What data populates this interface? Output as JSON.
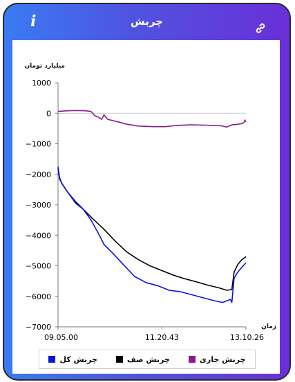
{
  "header": {
    "title": "چربش",
    "info_icon": "info-icon",
    "link_icon": "link-icon"
  },
  "colors": {
    "header_left": "#3a7bf2",
    "header_right": "#6a2fd8",
    "total": "#0a14e0",
    "queue": "#000000",
    "current": "#8a1a8a"
  },
  "chart_data": {
    "type": "line",
    "ylabel": "میلیارد تومان",
    "xlabel": "زمان",
    "ylim": [
      -7000,
      1000
    ],
    "yticks": [
      1000,
      0,
      -1000,
      -2000,
      -3000,
      -4000,
      -5000,
      -6000,
      -7000
    ],
    "xticks": [
      "09.05.00",
      "11.20.43",
      "13.10.26"
    ],
    "x_range": [
      "09.05.00",
      "13.10.26"
    ],
    "series": [
      {
        "name": "چربش جاری",
        "color": "#8a1a8a",
        "points": [
          [
            "09.05.00",
            60
          ],
          [
            "09.17.00",
            80
          ],
          [
            "09.29.00",
            90
          ],
          [
            "09.41.00",
            80
          ],
          [
            "09.48.00",
            60
          ],
          [
            "09.53.00",
            -80
          ],
          [
            "09.58.00",
            -130
          ],
          [
            "10.02.00",
            -200
          ],
          [
            "10.05.00",
            -50
          ],
          [
            "10.10.00",
            -200
          ],
          [
            "10.20.00",
            -260
          ],
          [
            "10.35.00",
            -360
          ],
          [
            "10.50.00",
            -420
          ],
          [
            "11.10.00",
            -440
          ],
          [
            "11.25.00",
            -440
          ],
          [
            "11.40.00",
            -400
          ],
          [
            "11.58.00",
            -380
          ],
          [
            "12.18.00",
            -390
          ],
          [
            "12.38.00",
            -410
          ],
          [
            "12.45.00",
            -450
          ],
          [
            "12.52.00",
            -380
          ],
          [
            "13.00.00",
            -360
          ],
          [
            "13.05.00",
            -340
          ],
          [
            "13.08.00",
            -300
          ],
          [
            "13.09.00",
            -220
          ],
          [
            "13.10.26",
            -280
          ]
        ]
      },
      {
        "name": "چربش صف",
        "color": "#000000",
        "points": [
          [
            "09.05.00",
            -1800
          ],
          [
            "09.07.00",
            -2150
          ],
          [
            "09.10.00",
            -2300
          ],
          [
            "09.18.00",
            -2600
          ],
          [
            "09.28.00",
            -2900
          ],
          [
            "09.38.00",
            -3150
          ],
          [
            "09.50.00",
            -3450
          ],
          [
            "10.05.00",
            -3800
          ],
          [
            "10.20.00",
            -4200
          ],
          [
            "10.35.00",
            -4550
          ],
          [
            "10.50.00",
            -4800
          ],
          [
            "11.05.00",
            -5000
          ],
          [
            "11.20.00",
            -5150
          ],
          [
            "11.35.00",
            -5300
          ],
          [
            "11.50.00",
            -5420
          ],
          [
            "12.05.00",
            -5520
          ],
          [
            "12.20.00",
            -5630
          ],
          [
            "12.35.00",
            -5720
          ],
          [
            "12.45.00",
            -5800
          ],
          [
            "12.52.00",
            -5780
          ],
          [
            "12.55.00",
            -5200
          ],
          [
            "13.00.00",
            -4950
          ],
          [
            "13.05.00",
            -4800
          ],
          [
            "13.10.26",
            -4700
          ]
        ]
      },
      {
        "name": "چربش کل",
        "color": "#0a14e0",
        "points": [
          [
            "09.05.00",
            -1750
          ],
          [
            "09.07.00",
            -2100
          ],
          [
            "09.10.00",
            -2300
          ],
          [
            "09.18.00",
            -2600
          ],
          [
            "09.28.00",
            -2950
          ],
          [
            "09.38.00",
            -3150
          ],
          [
            "09.48.00",
            -3500
          ],
          [
            "09.58.00",
            -3950
          ],
          [
            "10.05.00",
            -4300
          ],
          [
            "10.15.00",
            -4550
          ],
          [
            "10.30.00",
            -4950
          ],
          [
            "10.45.00",
            -5350
          ],
          [
            "11.00.00",
            -5550
          ],
          [
            "11.15.00",
            -5650
          ],
          [
            "11.30.00",
            -5800
          ],
          [
            "11.45.00",
            -5850
          ],
          [
            "12.00.00",
            -5950
          ],
          [
            "12.15.00",
            -6050
          ],
          [
            "12.30.00",
            -6150
          ],
          [
            "12.40.00",
            -6200
          ],
          [
            "12.50.00",
            -6100
          ],
          [
            "12.52.00",
            -6200
          ],
          [
            "12.55.00",
            -5400
          ],
          [
            "13.00.00",
            -5200
          ],
          [
            "13.05.00",
            -5050
          ],
          [
            "13.10.26",
            -4900
          ]
        ]
      }
    ]
  },
  "legend": [
    {
      "label": "چربش جاری",
      "color": "#8a1a8a"
    },
    {
      "label": "چربش صف",
      "color": "#000000"
    },
    {
      "label": "چربش کل",
      "color": "#0a14e0"
    }
  ]
}
